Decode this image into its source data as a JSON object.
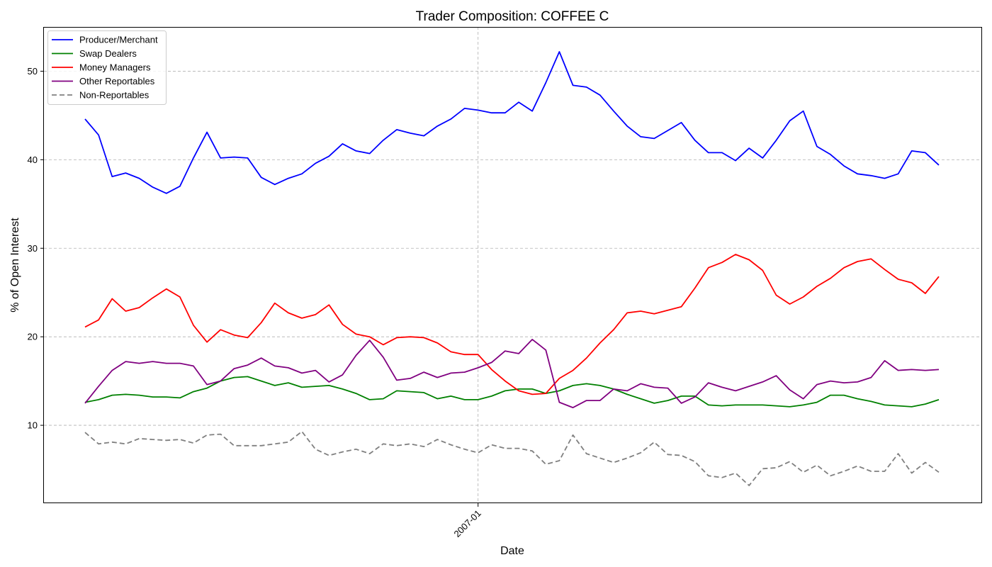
{
  "chart_data": {
    "type": "line",
    "title": "Trader Composition: COFFEE C",
    "xlabel": "Date",
    "ylabel": "% of Open Interest",
    "x_tick_labels": [
      "2007-01"
    ],
    "y_ticks": [
      10,
      20,
      30,
      40,
      50
    ],
    "ylim": [
      1.2,
      55.0
    ],
    "grid": true,
    "legend_position": "top-left",
    "series": [
      {
        "name": "Producer/Merchant",
        "color": "#0000ff",
        "dash": "solid",
        "values": [
          44.6,
          42.8,
          38.1,
          38.5,
          37.9,
          36.9,
          36.2,
          37.0,
          40.2,
          43.1,
          40.2,
          40.3,
          40.2,
          38.0,
          37.2,
          37.9,
          38.4,
          39.6,
          40.4,
          41.8,
          41.0,
          40.7,
          42.2,
          43.4,
          43.0,
          42.7,
          43.8,
          44.6,
          45.8,
          45.6,
          45.3,
          45.3,
          46.5,
          45.5,
          48.7,
          52.2,
          48.4,
          48.2,
          47.3,
          45.5,
          43.8,
          42.6,
          42.4,
          43.3,
          44.2,
          42.2,
          40.8,
          40.8,
          39.9,
          41.3,
          40.2,
          42.2,
          44.4,
          45.5,
          41.5,
          40.6,
          39.3,
          38.4,
          38.2,
          37.9,
          38.4,
          41.0,
          40.8,
          39.4
        ]
      },
      {
        "name": "Swap Dealers",
        "color": "#008000",
        "dash": "solid",
        "values": [
          12.6,
          12.9,
          13.4,
          13.5,
          13.4,
          13.2,
          13.2,
          13.1,
          13.8,
          14.2,
          15.0,
          15.4,
          15.5,
          15.0,
          14.5,
          14.8,
          14.3,
          14.4,
          14.5,
          14.1,
          13.6,
          12.9,
          13.0,
          13.9,
          13.8,
          13.7,
          13.0,
          13.3,
          12.9,
          12.9,
          13.3,
          13.9,
          14.1,
          14.1,
          13.6,
          13.9,
          14.5,
          14.7,
          14.5,
          14.1,
          13.5,
          13.0,
          12.5,
          12.8,
          13.3,
          13.3,
          12.3,
          12.2,
          12.3,
          12.3,
          12.3,
          12.2,
          12.1,
          12.3,
          12.6,
          13.4,
          13.4,
          13.0,
          12.7,
          12.3,
          12.2,
          12.1,
          12.4,
          12.9
        ]
      },
      {
        "name": "Money Managers",
        "color": "#ff0000",
        "dash": "solid",
        "values": [
          21.1,
          21.9,
          24.3,
          22.9,
          23.3,
          24.4,
          25.4,
          24.5,
          21.3,
          19.4,
          20.8,
          20.2,
          19.9,
          21.6,
          23.8,
          22.7,
          22.1,
          22.5,
          23.6,
          21.4,
          20.3,
          20.0,
          19.1,
          19.9,
          20.0,
          19.9,
          19.3,
          18.3,
          18.0,
          18.0,
          16.3,
          15.0,
          13.9,
          13.5,
          13.6,
          15.3,
          16.2,
          17.6,
          19.3,
          20.8,
          22.7,
          22.9,
          22.6,
          23.0,
          23.4,
          25.5,
          27.8,
          28.4,
          29.3,
          28.7,
          27.5,
          24.7,
          23.7,
          24.5,
          25.7,
          26.6,
          27.8,
          28.5,
          28.8,
          27.6,
          26.5,
          26.1,
          24.9,
          26.8
        ]
      },
      {
        "name": "Other Reportables",
        "color": "#800080",
        "dash": "solid",
        "values": [
          12.5,
          14.4,
          16.2,
          17.2,
          17.0,
          17.2,
          17.0,
          17.0,
          16.7,
          14.6,
          15.0,
          16.4,
          16.8,
          17.6,
          16.7,
          16.5,
          15.9,
          16.2,
          14.9,
          15.7,
          17.9,
          19.6,
          17.7,
          15.1,
          15.3,
          16.0,
          15.4,
          15.9,
          16.0,
          16.5,
          17.1,
          18.4,
          18.1,
          19.7,
          18.5,
          12.6,
          12.0,
          12.8,
          12.8,
          14.1,
          13.9,
          14.7,
          14.3,
          14.2,
          12.5,
          13.2,
          14.8,
          14.3,
          13.9,
          14.4,
          14.9,
          15.6,
          14.0,
          13.0,
          14.6,
          15.0,
          14.8,
          14.9,
          15.4,
          17.3,
          16.2,
          16.3,
          16.2,
          16.3
        ]
      },
      {
        "name": "Non-Reportables",
        "color": "#808080",
        "dash": "dashed",
        "values": [
          9.2,
          7.9,
          8.1,
          7.9,
          8.5,
          8.4,
          8.3,
          8.4,
          8.0,
          8.9,
          9.0,
          7.7,
          7.7,
          7.7,
          7.9,
          8.1,
          9.3,
          7.3,
          6.6,
          7.0,
          7.3,
          6.8,
          7.9,
          7.7,
          7.9,
          7.6,
          8.4,
          7.8,
          7.3,
          6.9,
          7.8,
          7.4,
          7.4,
          7.1,
          5.6,
          6.0,
          8.9,
          6.8,
          6.3,
          5.8,
          6.3,
          6.9,
          8.1,
          6.7,
          6.6,
          5.9,
          4.3,
          4.1,
          4.6,
          3.2,
          5.1,
          5.2,
          5.9,
          4.7,
          5.5,
          4.3,
          4.8,
          5.4,
          4.8,
          4.8,
          6.8,
          4.6,
          5.8,
          4.7
        ]
      }
    ]
  }
}
